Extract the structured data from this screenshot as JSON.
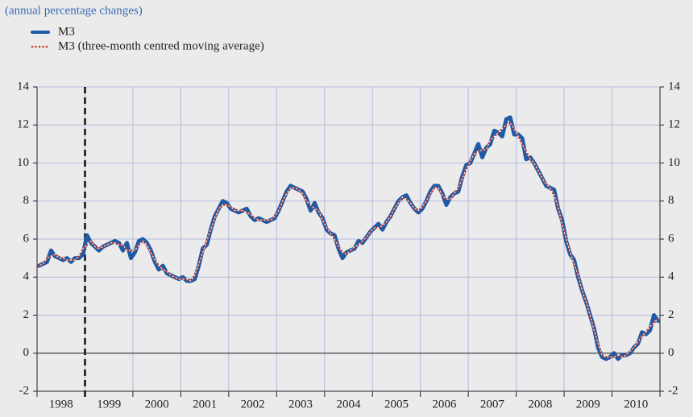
{
  "chart_data": {
    "type": "line",
    "subtitle": "(annual percentage changes)",
    "categories": [
      null,
      null,
      null,
      null,
      null,
      "1998",
      null,
      null,
      null,
      null,
      null,
      null,
      null,
      null,
      null,
      null,
      null,
      "1999",
      null,
      null,
      null,
      null,
      null,
      null,
      null,
      null,
      null,
      null,
      null,
      "2000",
      null,
      null,
      null,
      null,
      null,
      null,
      null,
      null,
      null,
      null,
      null,
      "2001",
      null,
      null,
      null,
      null,
      null,
      null,
      null,
      null,
      null,
      null,
      null,
      "2002",
      null,
      null,
      null,
      null,
      null,
      null,
      null,
      null,
      null,
      null,
      null,
      "2003",
      null,
      null,
      null,
      null,
      null,
      null,
      null,
      null,
      null,
      null,
      null,
      "2004",
      null,
      null,
      null,
      null,
      null,
      null,
      null,
      null,
      null,
      null,
      null,
      "2005",
      null,
      null,
      null,
      null,
      null,
      null,
      null,
      null,
      null,
      null,
      null,
      "2006",
      null,
      null,
      null,
      null,
      null,
      null,
      null,
      null,
      null,
      null,
      null,
      "2007",
      null,
      null,
      null,
      null,
      null,
      null,
      null,
      null,
      null,
      null,
      null,
      "2008",
      null,
      null,
      null,
      null,
      null,
      null,
      null,
      null,
      null,
      null,
      null,
      "2009",
      null,
      null,
      null,
      null,
      null,
      null,
      null,
      null,
      null,
      null,
      null,
      "2010",
      null,
      null,
      null,
      null,
      null,
      null
    ],
    "series": [
      {
        "name": "M3",
        "color": "#1f5aa6",
        "values": [
          4.6,
          4.7,
          4.8,
          5.4,
          5.1,
          5.0,
          4.9,
          5.0,
          4.8,
          5.0,
          5.0,
          5.2,
          6.2,
          5.8,
          5.6,
          5.4,
          5.6,
          5.7,
          5.8,
          5.9,
          5.8,
          5.4,
          5.8,
          5.0,
          5.3,
          5.9,
          6.0,
          5.8,
          5.4,
          4.8,
          4.4,
          4.6,
          4.2,
          4.1,
          4.0,
          3.9,
          4.0,
          3.8,
          3.8,
          3.9,
          4.6,
          5.5,
          5.7,
          6.5,
          7.2,
          7.6,
          8.0,
          7.9,
          7.6,
          7.5,
          7.4,
          7.5,
          7.6,
          7.2,
          7.0,
          7.1,
          7.0,
          6.9,
          7.0,
          7.1,
          7.5,
          8.0,
          8.5,
          8.8,
          8.7,
          8.6,
          8.5,
          8.1,
          7.5,
          7.9,
          7.4,
          7.1,
          6.5,
          6.3,
          6.2,
          5.5,
          5.0,
          5.3,
          5.4,
          5.5,
          5.9,
          5.8,
          6.1,
          6.4,
          6.6,
          6.8,
          6.5,
          6.9,
          7.2,
          7.6,
          8.0,
          8.2,
          8.3,
          7.9,
          7.6,
          7.4,
          7.6,
          8.0,
          8.5,
          8.8,
          8.8,
          8.4,
          7.8,
          8.2,
          8.4,
          8.5,
          9.3,
          9.9,
          10.0,
          10.5,
          11.0,
          10.3,
          10.8,
          11.0,
          11.7,
          11.6,
          11.4,
          12.3,
          12.4,
          11.5,
          11.5,
          11.3,
          10.2,
          10.3,
          10.0,
          9.6,
          9.2,
          8.8,
          8.7,
          8.6,
          7.6,
          7.0,
          5.9,
          5.2,
          4.9,
          4.0,
          3.3,
          2.7,
          2.0,
          1.3,
          0.3,
          -0.2,
          -0.3,
          -0.2,
          0.0,
          -0.3,
          -0.1,
          -0.1,
          0.0,
          0.3,
          0.5,
          1.1,
          1.0,
          1.2,
          2.0,
          1.7
        ]
      },
      {
        "name": "M3 (three-month centred moving average)",
        "color": "#c0392b",
        "values": [
          4.6,
          4.7,
          5.0,
          5.1,
          5.2,
          5.0,
          5.0,
          4.9,
          4.9,
          4.9,
          5.1,
          5.5,
          5.7,
          5.9,
          5.6,
          5.5,
          5.6,
          5.7,
          5.8,
          5.8,
          5.7,
          5.7,
          5.4,
          5.4,
          5.4,
          5.7,
          5.9,
          5.7,
          5.3,
          4.9,
          4.6,
          4.4,
          4.3,
          4.1,
          4.0,
          3.9,
          3.9,
          3.9,
          3.8,
          4.1,
          4.7,
          5.3,
          5.9,
          6.5,
          7.1,
          7.6,
          7.8,
          7.8,
          7.7,
          7.5,
          7.5,
          7.5,
          7.4,
          7.3,
          7.1,
          7.0,
          7.0,
          7.0,
          7.0,
          7.2,
          7.5,
          8.0,
          8.4,
          8.7,
          8.7,
          8.6,
          8.4,
          8.0,
          7.8,
          7.6,
          7.5,
          7.0,
          6.6,
          6.3,
          6.0,
          5.6,
          5.3,
          5.2,
          5.4,
          5.6,
          5.7,
          5.9,
          6.1,
          6.4,
          6.6,
          6.6,
          6.7,
          6.9,
          7.2,
          7.6,
          7.9,
          8.2,
          8.1,
          7.9,
          7.6,
          7.5,
          7.7,
          8.0,
          8.4,
          8.7,
          8.7,
          8.3,
          8.1,
          8.1,
          8.4,
          8.7,
          9.2,
          9.7,
          10.1,
          10.5,
          10.6,
          10.7,
          10.7,
          11.2,
          11.4,
          11.6,
          11.8,
          12.0,
          12.1,
          11.8,
          11.4,
          11.0,
          10.6,
          10.2,
          10.0,
          9.6,
          9.2,
          8.9,
          8.7,
          8.3,
          7.7,
          6.8,
          6.0,
          5.3,
          4.7,
          4.1,
          3.3,
          2.7,
          2.0,
          1.2,
          0.5,
          -0.1,
          -0.2,
          -0.2,
          -0.2,
          -0.1,
          -0.2,
          -0.1,
          0.1,
          0.3,
          0.6,
          0.9,
          1.1,
          1.4,
          1.6,
          1.8
        ]
      }
    ],
    "ylim": [
      -2,
      14
    ],
    "yticks": [
      -2,
      0,
      2,
      4,
      6,
      8,
      10,
      12,
      14
    ],
    "grid": true
  }
}
